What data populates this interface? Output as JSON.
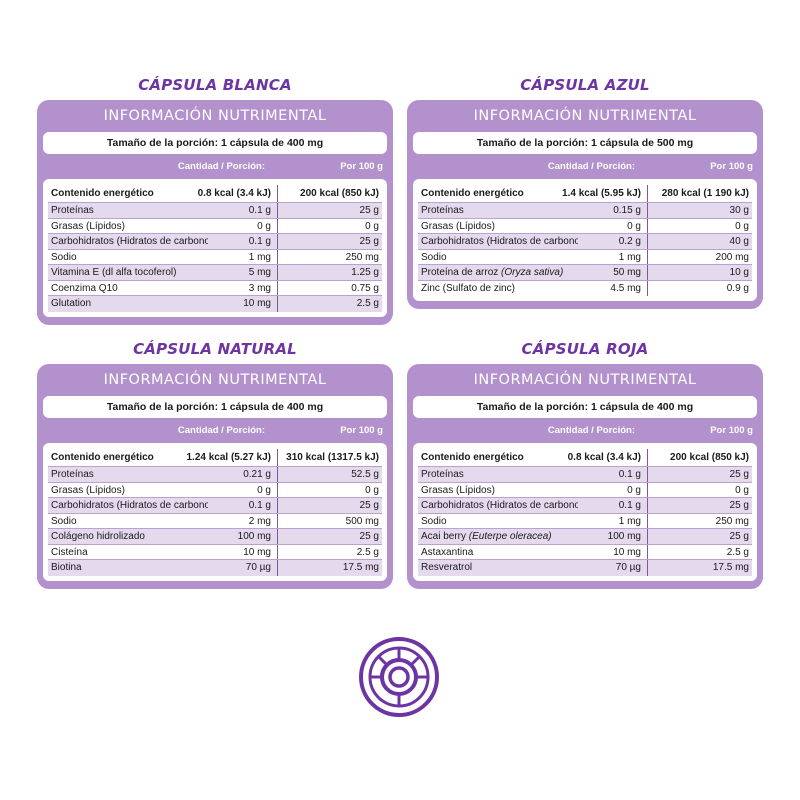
{
  "header_label": "INFORMACIÓN NUTRIMENTAL",
  "col_portion": "Cantidad / Porción:",
  "col_per100": "Por 100 g",
  "accent_color": "#6d35a3",
  "card_color": "#b291cc",
  "panels": [
    {
      "title": "CÁPSULA BLANCA",
      "portion": "Tamaño de la porción: 1 cápsula de 400 mg",
      "energy": {
        "name": "Contenido energético",
        "amount": "0.8 kcal (3.4 kJ)",
        "per100": "200 kcal (850 kJ)"
      },
      "rows": [
        {
          "name": "Proteínas",
          "amount": "0.1 g",
          "per100": "25 g"
        },
        {
          "name": "Grasas (Lípidos)",
          "amount": "0 g",
          "per100": "0 g"
        },
        {
          "name": "Carbohidratos (Hidratos de carbono)",
          "amount": "0.1 g",
          "per100": "25 g"
        },
        {
          "name": "Sodio",
          "amount": "1 mg",
          "per100": "250 mg"
        },
        {
          "name": "Vitamina E (dl alfa tocoferol)",
          "amount": "5 mg",
          "per100": "1.25 g"
        },
        {
          "name": "Coenzima Q10",
          "amount": "3 mg",
          "per100": "0.75 g"
        },
        {
          "name": "Glutation",
          "amount": "10 mg",
          "per100": "2.5 g"
        }
      ]
    },
    {
      "title": "CÁPSULA AZUL",
      "portion": "Tamaño de la porción: 1 cápsula de 500 mg",
      "energy": {
        "name": "Contenido energético",
        "amount": "1.4 kcal (5.95 kJ)",
        "per100": "280 kcal (1 190 kJ)"
      },
      "rows": [
        {
          "name": "Proteínas",
          "amount": "0.15 g",
          "per100": "30 g"
        },
        {
          "name": "Grasas (Lípidos)",
          "amount": "0 g",
          "per100": "0 g"
        },
        {
          "name": "Carbohidratos (Hidratos de carbono)",
          "amount": "0.2 g",
          "per100": "40 g"
        },
        {
          "name": "Sodio",
          "amount": "1 mg",
          "per100": "200 mg"
        },
        {
          "name": "Proteína de arroz",
          "italic": "(Oryza sativa)",
          "amount": "50 mg",
          "per100": "10 g"
        },
        {
          "name": "Zinc (Sulfato de zinc)",
          "amount": "4.5 mg",
          "per100": "0.9 g"
        }
      ]
    },
    {
      "title": "CÁPSULA NATURAL",
      "portion": "Tamaño de la porción: 1 cápsula de 400 mg",
      "energy": {
        "name": "Contenido energético",
        "amount": "1.24 kcal (5.27 kJ)",
        "per100": "310 kcal (1317.5 kJ)"
      },
      "rows": [
        {
          "name": "Proteínas",
          "amount": "0.21 g",
          "per100": "52.5 g"
        },
        {
          "name": "Grasas (Lípidos)",
          "amount": "0 g",
          "per100": "0 g"
        },
        {
          "name": "Carbohidratos (Hidratos de carbono)",
          "amount": "0.1 g",
          "per100": "25 g"
        },
        {
          "name": "Sodio",
          "amount": "2 mg",
          "per100": "500 mg"
        },
        {
          "name": "Colágeno hidrolizado",
          "amount": "100 mg",
          "per100": "25 g"
        },
        {
          "name": "Cisteína",
          "amount": "10 mg",
          "per100": "2.5 g"
        },
        {
          "name": "Biotina",
          "amount": "70 µg",
          "per100": "17.5 mg"
        }
      ]
    },
    {
      "title": "CÁPSULA ROJA",
      "portion": "Tamaño de la porción: 1 cápsula de 400 mg",
      "energy": {
        "name": "Contenido energético",
        "amount": "0.8 kcal (3.4 kJ)",
        "per100": "200 kcal (850 kJ)"
      },
      "rows": [
        {
          "name": "Proteínas",
          "amount": "0.1 g",
          "per100": "25 g"
        },
        {
          "name": "Grasas (Lípidos)",
          "amount": "0 g",
          "per100": "0 g"
        },
        {
          "name": "Carbohidratos (Hidratos de carbono)",
          "amount": "0.1 g",
          "per100": "25 g"
        },
        {
          "name": "Sodio",
          "amount": "1 mg",
          "per100": "250 mg"
        },
        {
          "name": "Acai berry",
          "italic": "(Euterpe oleracea)",
          "amount": "100 mg",
          "per100": "25 g"
        },
        {
          "name": "Astaxantina",
          "amount": "10 mg",
          "per100": "2.5 g"
        },
        {
          "name": "Resveratrol",
          "amount": "70 µg",
          "per100": "17.5 mg"
        }
      ]
    }
  ]
}
